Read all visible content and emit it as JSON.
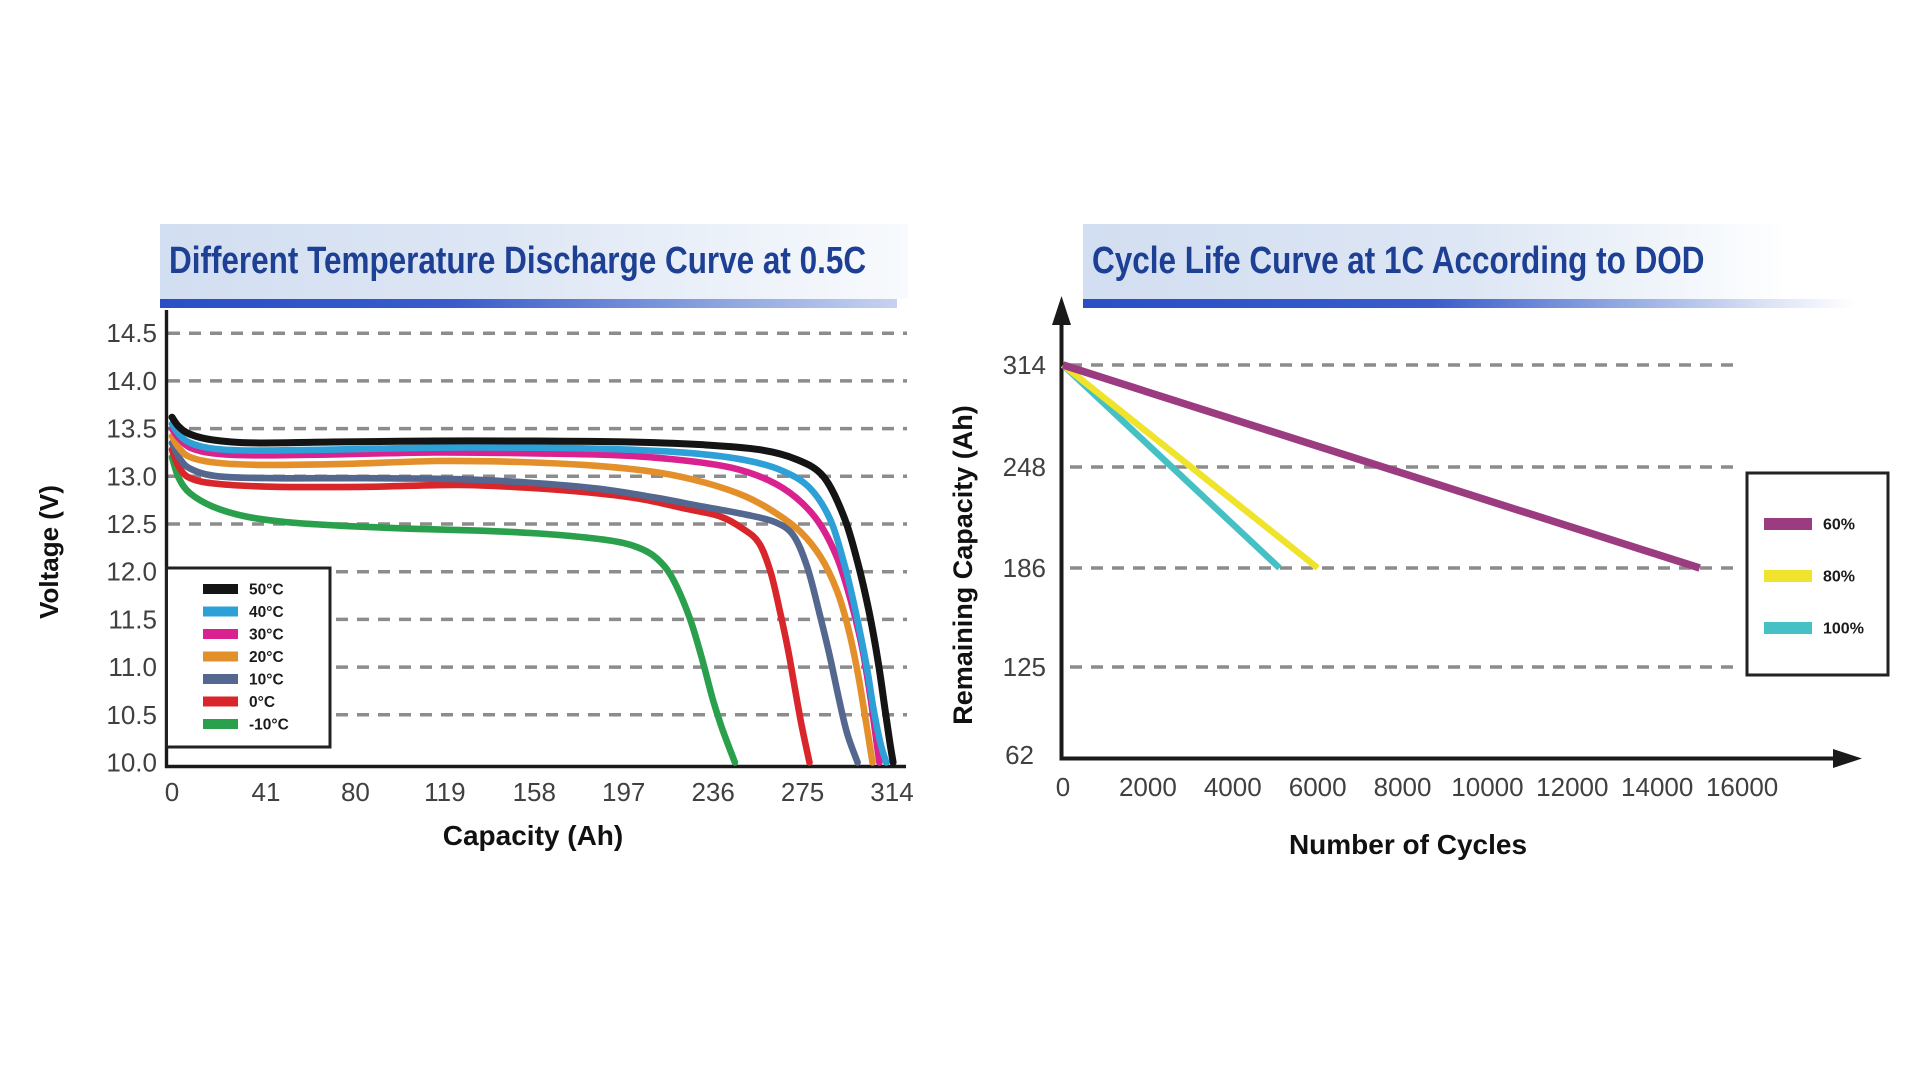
{
  "chart_data": [
    {
      "type": "line",
      "title": "Different Temperature Discharge Curve at 0.5C",
      "xlabel": "Capacity (Ah)",
      "ylabel": "Voltage (V)",
      "x_ticks": [
        0,
        41,
        80,
        119,
        158,
        197,
        236,
        275,
        314
      ],
      "y_ticks": [
        "14.5",
        "14.0",
        "13.5",
        "13.0",
        "12.5",
        "12.0",
        "11.5",
        "11.0",
        "10.5",
        "10.0"
      ],
      "xlim": [
        0,
        314
      ],
      "ylim": [
        10.0,
        14.5
      ],
      "grid": "horizontal dashed",
      "legend_position": "lower left",
      "series": [
        {
          "name": "50°C",
          "color": "#141414",
          "points": [
            [
              0,
              13.62
            ],
            [
              3,
              13.52
            ],
            [
              8,
              13.44
            ],
            [
              18,
              13.38
            ],
            [
              35,
              13.35
            ],
            [
              70,
              13.36
            ],
            [
              115,
              13.37
            ],
            [
              160,
              13.37
            ],
            [
              200,
              13.36
            ],
            [
              232,
              13.33
            ],
            [
              256,
              13.28
            ],
            [
              272,
              13.18
            ],
            [
              284,
              13.0
            ],
            [
              293,
              12.58
            ],
            [
              299,
              12.1
            ],
            [
              304,
              11.58
            ],
            [
              308,
              11.05
            ],
            [
              311,
              10.55
            ],
            [
              313,
              10.22
            ],
            [
              314.5,
              10.0
            ]
          ]
        },
        {
          "name": "40°C",
          "color": "#2da0d8",
          "points": [
            [
              0,
              13.55
            ],
            [
              3,
              13.44
            ],
            [
              8,
              13.35
            ],
            [
              18,
              13.29
            ],
            [
              35,
              13.27
            ],
            [
              70,
              13.28
            ],
            [
              115,
              13.3
            ],
            [
              160,
              13.3
            ],
            [
              198,
              13.28
            ],
            [
              228,
              13.24
            ],
            [
              250,
              13.17
            ],
            [
              266,
              13.06
            ],
            [
              278,
              12.88
            ],
            [
              287,
              12.55
            ],
            [
              293,
              12.1
            ],
            [
              298,
              11.6
            ],
            [
              303,
              11.0
            ],
            [
              306,
              10.55
            ],
            [
              309,
              10.2
            ],
            [
              311.5,
              10.0
            ]
          ]
        },
        {
          "name": "30°C",
          "color": "#d92190",
          "points": [
            [
              0,
              13.5
            ],
            [
              3,
              13.4
            ],
            [
              8,
              13.3
            ],
            [
              18,
              13.24
            ],
            [
              35,
              13.22
            ],
            [
              70,
              13.23
            ],
            [
              115,
              13.25
            ],
            [
              160,
              13.24
            ],
            [
              195,
              13.22
            ],
            [
              222,
              13.17
            ],
            [
              244,
              13.09
            ],
            [
              260,
              12.96
            ],
            [
              272,
              12.78
            ],
            [
              282,
              12.52
            ],
            [
              290,
              12.15
            ],
            [
              296,
              11.7
            ],
            [
              301,
              11.2
            ],
            [
              304.5,
              10.7
            ],
            [
              306.5,
              10.35
            ],
            [
              308.5,
              10.0
            ]
          ]
        },
        {
          "name": "20°C",
          "color": "#e3902b",
          "points": [
            [
              0,
              13.42
            ],
            [
              3,
              13.3
            ],
            [
              8,
              13.2
            ],
            [
              20,
              13.14
            ],
            [
              40,
              13.12
            ],
            [
              75,
              13.13
            ],
            [
              115,
              13.16
            ],
            [
              152,
              13.15
            ],
            [
              185,
              13.11
            ],
            [
              212,
              13.04
            ],
            [
              233,
              12.93
            ],
            [
              250,
              12.79
            ],
            [
              263,
              12.62
            ],
            [
              274,
              12.42
            ],
            [
              283,
              12.15
            ],
            [
              290,
              11.8
            ],
            [
              295,
              11.4
            ],
            [
              299,
              10.95
            ],
            [
              302.5,
              10.45
            ],
            [
              305.5,
              10.0
            ]
          ]
        },
        {
          "name": "10°C",
          "color": "#54678f",
          "points": [
            [
              0,
              13.35
            ],
            [
              3,
              13.2
            ],
            [
              8,
              13.08
            ],
            [
              20,
              13.0
            ],
            [
              45,
              12.98
            ],
            [
              85,
              12.98
            ],
            [
              125,
              12.97
            ],
            [
              158,
              12.93
            ],
            [
              186,
              12.87
            ],
            [
              210,
              12.78
            ],
            [
              232,
              12.68
            ],
            [
              250,
              12.6
            ],
            [
              263,
              12.52
            ],
            [
              271,
              12.38
            ],
            [
              277,
              12.05
            ],
            [
              282,
              11.6
            ],
            [
              287,
              11.1
            ],
            [
              291,
              10.65
            ],
            [
              294.5,
              10.3
            ],
            [
              299,
              10.0
            ]
          ]
        },
        {
          "name": "0°C",
          "color": "#d9262b",
          "points": [
            [
              0,
              13.28
            ],
            [
              3,
              13.1
            ],
            [
              8,
              12.98
            ],
            [
              20,
              12.92
            ],
            [
              45,
              12.89
            ],
            [
              85,
              12.89
            ],
            [
              125,
              12.91
            ],
            [
              155,
              12.88
            ],
            [
              182,
              12.83
            ],
            [
              205,
              12.76
            ],
            [
              224,
              12.66
            ],
            [
              239,
              12.58
            ],
            [
              249,
              12.45
            ],
            [
              256,
              12.3
            ],
            [
              261,
              12.0
            ],
            [
              265,
              11.6
            ],
            [
              268.5,
              11.2
            ],
            [
              271.5,
              10.8
            ],
            [
              274.5,
              10.4
            ],
            [
              278,
              10.0
            ]
          ]
        },
        {
          "name": "-10°C",
          "color": "#2aa04d",
          "points": [
            [
              0,
              13.2
            ],
            [
              3,
              12.98
            ],
            [
              8,
              12.82
            ],
            [
              18,
              12.68
            ],
            [
              32,
              12.58
            ],
            [
              50,
              12.52
            ],
            [
              75,
              12.48
            ],
            [
              105,
              12.45
            ],
            [
              135,
              12.43
            ],
            [
              160,
              12.4
            ],
            [
              180,
              12.36
            ],
            [
              197,
              12.3
            ],
            [
              208,
              12.2
            ],
            [
              215,
              12.05
            ],
            [
              220,
              11.85
            ],
            [
              226,
              11.5
            ],
            [
              231,
              11.1
            ],
            [
              236,
              10.65
            ],
            [
              240,
              10.35
            ],
            [
              245.5,
              10.0
            ]
          ]
        }
      ]
    },
    {
      "type": "line",
      "title": "Cycle Life Curve at 1C According to DOD",
      "xlabel": "Number of Cycles",
      "ylabel": "Remaining Capacity (Ah)",
      "x_ticks": [
        0,
        2000,
        4000,
        6000,
        8000,
        10000,
        12000,
        14000,
        16000
      ],
      "y_ticks": [
        314,
        248,
        186,
        125,
        62
      ],
      "xlim": [
        0,
        16000
      ],
      "grid": "horizontal dashed",
      "legend_position": "right",
      "series": [
        {
          "name": "60%",
          "color": "#9c3c80",
          "points": [
            [
              0,
              314
            ],
            [
              15000,
              186
            ]
          ]
        },
        {
          "name": "80%",
          "color": "#efe32b",
          "points": [
            [
              0,
              314
            ],
            [
              6000,
              186
            ]
          ]
        },
        {
          "name": "100%",
          "color": "#45c0c4",
          "points": [
            [
              0,
              314
            ],
            [
              5100,
              186
            ]
          ]
        }
      ]
    }
  ]
}
